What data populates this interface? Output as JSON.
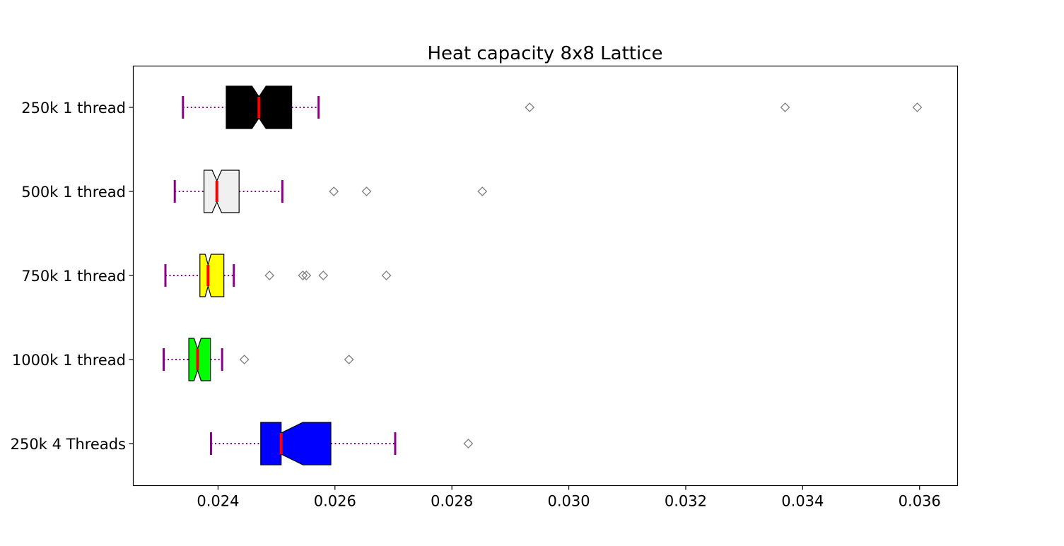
{
  "chart_data": {
    "type": "boxplot",
    "orientation": "horizontal",
    "title": "Heat capacity 8x8 Lattice",
    "xlabel": "",
    "ylabel": "",
    "xlim": [
      0.02255,
      0.03665
    ],
    "xticks": [
      0.024,
      0.026,
      0.028,
      0.03,
      0.032,
      0.034,
      0.036
    ],
    "xtick_labels": [
      "0.024",
      "0.026",
      "0.028",
      "0.030",
      "0.032",
      "0.034",
      "0.036"
    ],
    "notched": true,
    "grid": false,
    "legend": "none",
    "colors": {
      "whisker": "#8b008b",
      "median": "#ff0000",
      "flier": "#808080",
      "box_edge": "#000000"
    },
    "series": [
      {
        "label": "250k 1 thread",
        "color": "#000000",
        "whislo": 0.0234,
        "q1": 0.02414,
        "notch_lo": 0.02458,
        "med": 0.0247,
        "notch_hi": 0.02482,
        "q3": 0.02526,
        "whishi": 0.02572,
        "fliers": [
          0.02933,
          0.0337,
          0.03596
        ]
      },
      {
        "label": "500k 1 thread",
        "color": "#f0f0f0",
        "whislo": 0.02326,
        "q1": 0.02376,
        "notch_lo": 0.0239,
        "med": 0.02398,
        "notch_hi": 0.02406,
        "q3": 0.02436,
        "whishi": 0.0251,
        "fliers": [
          0.02598,
          0.02654,
          0.02852
        ]
      },
      {
        "label": "750k 1 thread",
        "color": "#ffff00",
        "whislo": 0.0231,
        "q1": 0.02369,
        "notch_lo": 0.02378,
        "med": 0.02383,
        "notch_hi": 0.02388,
        "q3": 0.0241,
        "whishi": 0.02427,
        "fliers": [
          0.02488,
          0.02545,
          0.02551,
          0.0258,
          0.02688
        ]
      },
      {
        "label": "1000k 1 thread",
        "color": "#00ff00",
        "whislo": 0.02307,
        "q1": 0.0235,
        "notch_lo": 0.02359,
        "med": 0.02365,
        "notch_hi": 0.02371,
        "q3": 0.02387,
        "whishi": 0.02407,
        "fliers": [
          0.02445,
          0.02624
        ]
      },
      {
        "label": "250k 4 Threads",
        "color": "#0000ff",
        "whislo": 0.02388,
        "q1": 0.02473,
        "notch_lo": 0.02508,
        "med": 0.02508,
        "notch_hi": 0.02545,
        "q3": 0.02593,
        "whishi": 0.02703,
        "fliers": [
          0.02828
        ]
      }
    ]
  }
}
